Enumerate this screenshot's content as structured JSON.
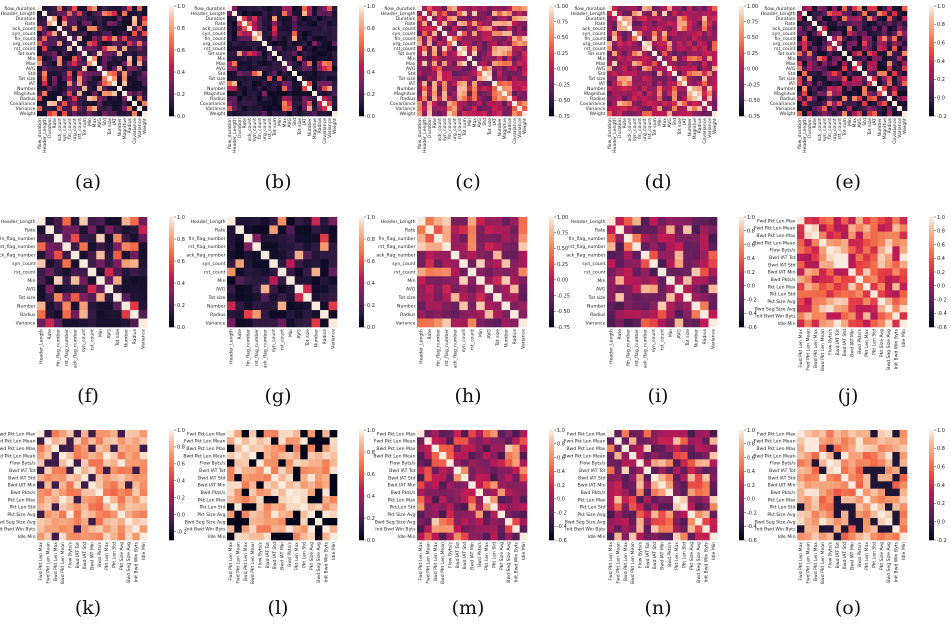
{
  "figure": {
    "rows": 3,
    "cols": 5
  },
  "chart_data": [
    {
      "id": "a",
      "caption": "(a)",
      "type": "heatmap",
      "label_set": "set1",
      "labels_visible": [
        true,
        true
      ],
      "cmap": "rocket",
      "mode": "pos",
      "seed": 11,
      "vmin": 0,
      "vmax": 1,
      "cbar_ticks": [
        "1.0",
        "0.8",
        "0.6",
        "0.4",
        "0.2",
        "0.0"
      ]
    },
    {
      "id": "b",
      "caption": "(b)",
      "type": "heatmap",
      "label_set": "set1",
      "labels_visible": [
        true,
        true
      ],
      "cmap": "rocket",
      "mode": "dark",
      "seed": 23,
      "vmin": 0,
      "vmax": 1,
      "cbar_ticks": [
        "1.0",
        "0.8",
        "0.6",
        "0.4",
        "0.2",
        "0.0"
      ]
    },
    {
      "id": "c",
      "caption": "(c)",
      "type": "heatmap",
      "label_set": "set1",
      "labels_visible": [
        true,
        true
      ],
      "cmap": "rocket",
      "mode": "mix",
      "seed": 37,
      "vmin": -0.75,
      "vmax": 1,
      "cbar_ticks": [
        "1.00",
        "0.75",
        "0.50",
        "0.25",
        "0.00",
        "-0.25",
        "-0.50",
        "-0.75"
      ]
    },
    {
      "id": "d",
      "caption": "(d)",
      "type": "heatmap",
      "label_set": "set1",
      "labels_visible": [
        true,
        true
      ],
      "cmap": "rocket",
      "mode": "mix",
      "seed": 41,
      "vmin": -0.75,
      "vmax": 1,
      "cbar_ticks": [
        "1.00",
        "0.75",
        "0.50",
        "0.25",
        "0.00",
        "-0.25",
        "-0.50",
        "-0.75"
      ]
    },
    {
      "id": "e",
      "caption": "(e)",
      "type": "heatmap",
      "label_set": "set1",
      "labels_visible": [
        true,
        true
      ],
      "cmap": "rocket",
      "mode": "mixdark",
      "seed": 53,
      "vmin": -0.2,
      "vmax": 1,
      "cbar_ticks": [
        "1.0",
        "0.8",
        "0.6",
        "0.4",
        "0.2",
        "0.0",
        "-0.2"
      ]
    },
    {
      "id": "f",
      "caption": "(f)",
      "type": "heatmap",
      "label_set": "set2",
      "labels_visible": [
        true,
        true
      ],
      "cmap": "rocket",
      "mode": "pos",
      "seed": 61,
      "vmin": 0,
      "vmax": 1,
      "cbar_ticks": [
        "1.0",
        "0.8",
        "0.6",
        "0.4",
        "0.2",
        "0.0"
      ]
    },
    {
      "id": "g",
      "caption": "(g)",
      "type": "heatmap",
      "label_set": "set2",
      "labels_visible": [
        true,
        true
      ],
      "cmap": "rocket",
      "mode": "dark",
      "seed": 67,
      "vmin": 0,
      "vmax": 1,
      "cbar_ticks": [
        "1.0",
        "0.8",
        "0.6",
        "0.4",
        "0.2",
        "0.0"
      ]
    },
    {
      "id": "h",
      "caption": "(h)",
      "type": "heatmap",
      "label_set": "set2",
      "labels_visible": [
        true,
        true
      ],
      "cmap": "rocket",
      "mode": "mix",
      "seed": 71,
      "vmin": -0.75,
      "vmax": 1,
      "cbar_ticks": [
        "1.00",
        "0.75",
        "0.50",
        "0.25",
        "0.00",
        "-0.25",
        "-0.50",
        "-0.75"
      ]
    },
    {
      "id": "i",
      "caption": "(i)",
      "type": "heatmap",
      "label_set": "set2",
      "labels_visible": [
        false,
        true
      ],
      "cmap": "rocket",
      "mode": "mix",
      "seed": 79,
      "vmin": -0.6,
      "vmax": 1,
      "cbar_ticks": [
        "1.0",
        "0.8",
        "0.6",
        "0.4",
        "0.2",
        "0.0",
        "-0.2",
        "-0.4",
        "-0.6"
      ]
    },
    {
      "id": "j",
      "caption": "(j)",
      "type": "heatmap",
      "label_set": "set3",
      "labels_visible": [
        true,
        true
      ],
      "cmap": "rocket",
      "mode": "mixbright",
      "seed": 83,
      "vmin": -0.6,
      "vmax": 1,
      "cbar_ticks": [
        "1.0",
        "0.8",
        "0.6",
        "0.4",
        "0.2",
        "0.0",
        "-0.2",
        "-0.4",
        "-0.6"
      ]
    },
    {
      "id": "k",
      "caption": "(k)",
      "type": "heatmap",
      "label_set": "set3",
      "labels_visible": [
        true,
        true
      ],
      "cmap": "rocket",
      "mode": "bright",
      "seed": 89,
      "vmin": -0.3,
      "vmax": 1,
      "cbar_ticks": [
        "1.0",
        "0.8",
        "0.6",
        "0.4",
        "0.2",
        "0.0",
        "-0.2"
      ]
    },
    {
      "id": "l",
      "caption": "(l)",
      "type": "heatmap",
      "label_set": "set3",
      "labels_visible": [
        true,
        true
      ],
      "cmap": "rocket",
      "mode": "pale",
      "seed": 97,
      "vmin": 0,
      "vmax": 1,
      "cbar_ticks": [
        "1.0",
        "0.8",
        "0.6",
        "0.4",
        "0.2",
        "0.0"
      ]
    },
    {
      "id": "m",
      "caption": "(m)",
      "type": "heatmap",
      "label_set": "set3",
      "labels_visible": [
        true,
        true
      ],
      "cmap": "rocket",
      "mode": "mix",
      "seed": 101,
      "vmin": -0.6,
      "vmax": 1,
      "cbar_ticks": [
        "1.0",
        "0.8",
        "0.6",
        "0.4",
        "0.2",
        "0.0",
        "-0.2",
        "-0.4",
        "-0.6"
      ]
    },
    {
      "id": "n",
      "caption": "(n)",
      "type": "heatmap",
      "label_set": "set3",
      "labels_visible": [
        true,
        true
      ],
      "cmap": "rocket",
      "mode": "mix",
      "seed": 103,
      "vmin": -0.6,
      "vmax": 1,
      "cbar_ticks": [
        "1.0",
        "0.8",
        "0.6",
        "0.4",
        "0.2",
        "0.0",
        "-0.2",
        "-0.4",
        "-0.6"
      ]
    },
    {
      "id": "o",
      "caption": "(o)",
      "type": "heatmap",
      "label_set": "set3",
      "labels_visible": [
        true,
        true
      ],
      "cmap": "rocket",
      "mode": "bright",
      "seed": 107,
      "vmin": -0.2,
      "vmax": 1,
      "cbar_ticks": [
        "1.0",
        "0.8",
        "0.6",
        "0.4",
        "0.2",
        "0.0",
        "-0.2"
      ]
    }
  ],
  "label_sets": {
    "set1": [
      "flow_duration",
      "Header_Length",
      "Duration",
      "Rate",
      "ack_count",
      "syn_count",
      "fin_count",
      "urg_count",
      "rst_count",
      "Tot sum",
      "Min",
      "Max",
      "AVG",
      "Std",
      "Tot size",
      "IAT",
      "Number",
      "Magnitue",
      "Radius",
      "Covariance",
      "Variance",
      "Weight"
    ],
    "set2": [
      "Header_Length",
      "Rate",
      "fin_flag_number",
      "rst_flag_number",
      "ack_flag_number",
      "syn_count",
      "rst_count",
      "Min",
      "AVG",
      "Tot size",
      "Number",
      "Radius",
      "Variance"
    ],
    "set3": [
      "Fwd Pkt Len Max",
      "Fwd Pkt Len Mean",
      "Bwd Pkt Len Max",
      "Bwd Pkt Len Mean",
      "Flow Byts/s",
      "Bwd IAT Tot",
      "Bwd IAT Std",
      "Bwd IAT Min",
      "Bwd Pkts/s",
      "Pkt Len Max",
      "Pkt Len Std",
      "Pkt Size Avg",
      "Bwd Seg Size Avg",
      "Init Bwd Win Byts",
      "Idle Min"
    ]
  },
  "colors": {
    "background": "#ffffff",
    "rocket": [
      "#03051a",
      "#2b1a3f",
      "#5c1e5b",
      "#8c1f5e",
      "#bd1a55",
      "#e43c45",
      "#f26c4a",
      "#f5966c",
      "#f6bc9b",
      "#faebdd"
    ]
  }
}
